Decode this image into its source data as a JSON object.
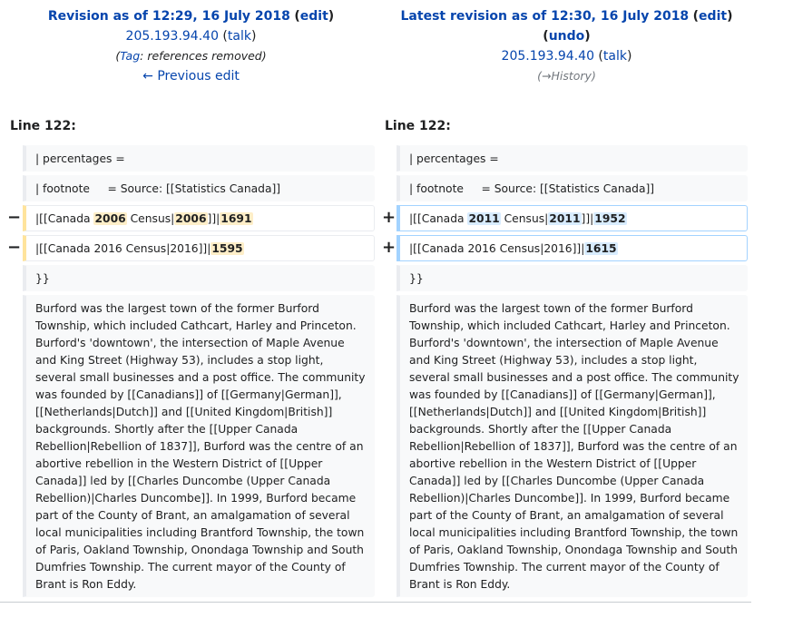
{
  "left_header": {
    "title": "Revision as of 12:29, 16 July 2018",
    "edit": "edit",
    "user": "205.193.94.40",
    "talk": "talk",
    "tag_label": "Tag",
    "tag_text": "references removed",
    "prev_edit": "← Previous edit"
  },
  "right_header": {
    "title": "Latest revision as of 12:30, 16 July 2018",
    "edit": "edit",
    "undo": "undo",
    "user": "205.193.94.40",
    "talk": "talk",
    "history": "History"
  },
  "line_label": "Line 122:",
  "context_rows": {
    "percentages": "| percentages =",
    "footnote": "| footnote     = Source: [[Statistics Canada]]",
    "closing": "}}"
  },
  "changed_rows": {
    "del1": {
      "a": "|[[Canada ",
      "h1": "2006",
      "b": " Census|",
      "h2": "2006",
      "c": "]]|",
      "h3": "1691"
    },
    "del2": {
      "a": "|[[Canada 2016 Census|2016]]|",
      "h1": "1595"
    },
    "add1": {
      "a": "|[[Canada ",
      "h1": "2011",
      "b": " Census|",
      "h2": "2011",
      "c": "]]|",
      "h3": "1952"
    },
    "add2": {
      "a": "|[[Canada 2016 Census|2016]]|",
      "h1": "1615"
    }
  },
  "markers": {
    "minus": "−",
    "plus": "+"
  },
  "paragraph": "Burford was the largest town of the former Burford Township, which included Cathcart, Harley and Princeton. Burford's 'downtown', the intersection of Maple Avenue and King Street (Highway 53), includes a stop light, several small businesses and a post office. The community was founded by [[Canadians]] of [[Germany|German]], [[Netherlands|Dutch]] and [[United Kingdom|British]] backgrounds. Shortly after the [[Upper Canada Rebellion|Rebellion of 1837]], Burford was the centre of an abortive rebellion in the Western District of [[Upper Canada]] led by [[Charles Duncombe (Upper Canada Rebellion)|Charles Duncombe]]. In 1999, Burford became part of the County of Brant, an amalgamation of several local municipalities including Brantford Township, the town of Paris, Oakland Township, Onondaga Township and South Dumfries Township. The current mayor of the County of Brant is Ron Eddy.",
  "colors": {
    "link": "#0645ad",
    "deleted_border": "#ffe49c",
    "added_border": "#a3d3ff",
    "context_bg": "#f8f9fa"
  }
}
